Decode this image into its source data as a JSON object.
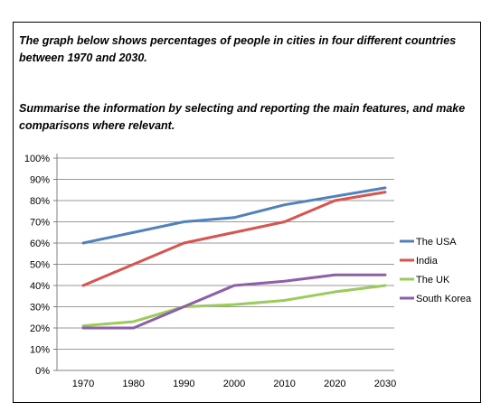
{
  "prompt": {
    "paragraph1": "The graph below shows percentages of people in cities in four different countries between 1970 and 2030.",
    "paragraph2": "Summarise the information by selecting and reporting the main features, and make comparisons where relevant."
  },
  "chart_data": {
    "type": "line",
    "title": "",
    "xlabel": "",
    "ylabel": "",
    "x": [
      1970,
      1980,
      1990,
      2000,
      2010,
      2020,
      2030
    ],
    "x_tick_labels": [
      "1970",
      "1980",
      "1990",
      "2000",
      "2010",
      "2020",
      "2030"
    ],
    "ylim": [
      0,
      100
    ],
    "y_tick_labels": [
      "0%",
      "10%",
      "20%",
      "30%",
      "40%",
      "50%",
      "60%",
      "70%",
      "80%",
      "90%",
      "100%"
    ],
    "grid": true,
    "legend_position": "right",
    "series": [
      {
        "name": "The USA",
        "color": "#4F81BD",
        "values": [
          60,
          65,
          70,
          72,
          78,
          82,
          86
        ]
      },
      {
        "name": "India",
        "color": "#D9534F",
        "values": [
          40,
          50,
          60,
          65,
          70,
          80,
          84
        ]
      },
      {
        "name": "The UK",
        "color": "#9BCB5A",
        "values": [
          21,
          23,
          30,
          31,
          33,
          37,
          40
        ]
      },
      {
        "name": "South Korea",
        "color": "#8E5EA8",
        "values": [
          20,
          20,
          30,
          40,
          42,
          45,
          45
        ]
      }
    ]
  }
}
